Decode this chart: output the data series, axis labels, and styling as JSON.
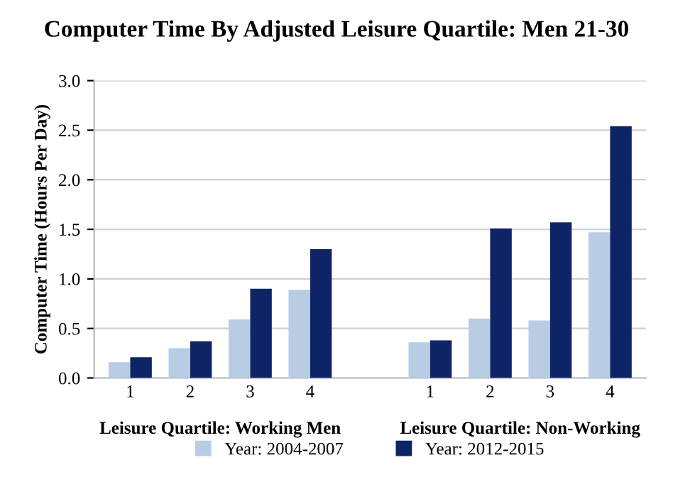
{
  "chart_data": {
    "type": "bar",
    "title": "Computer Time By Adjusted Leisure Quartile: Men 21-30",
    "ylabel": "Computer Time (Hours Per Day)",
    "categories": [
      "1",
      "2",
      "3",
      "4",
      null,
      "1",
      "2",
      "3",
      "4"
    ],
    "series": [
      {
        "name": "Year: 2004-2007",
        "color": "#b8cce4",
        "values": [
          0.16,
          0.3,
          0.59,
          0.89,
          null,
          0.36,
          0.6,
          0.58,
          1.47
        ]
      },
      {
        "name": "Year: 2012-2015",
        "color": "#0f2466",
        "values": [
          0.21,
          0.37,
          0.9,
          1.3,
          null,
          0.38,
          1.51,
          1.57,
          2.54
        ]
      }
    ],
    "annotations": [
      "Leisure Quartile: Working Men",
      "Leisure Quartile: Non-Working"
    ],
    "ylim": [
      0,
      3.0
    ],
    "yticks": [
      {
        "value": 0,
        "label": "0.0"
      },
      {
        "value": 0.5,
        "label": "0.5"
      },
      {
        "value": 1.0,
        "label": "1.0"
      },
      {
        "value": 1.5,
        "label": "1.5"
      },
      {
        "value": 2.0,
        "label": "2.0"
      },
      {
        "value": 2.5,
        "label": "2.5"
      },
      {
        "value": 3.0,
        "label": "3.0"
      }
    ],
    "grid": "y",
    "legend": "bottom"
  }
}
